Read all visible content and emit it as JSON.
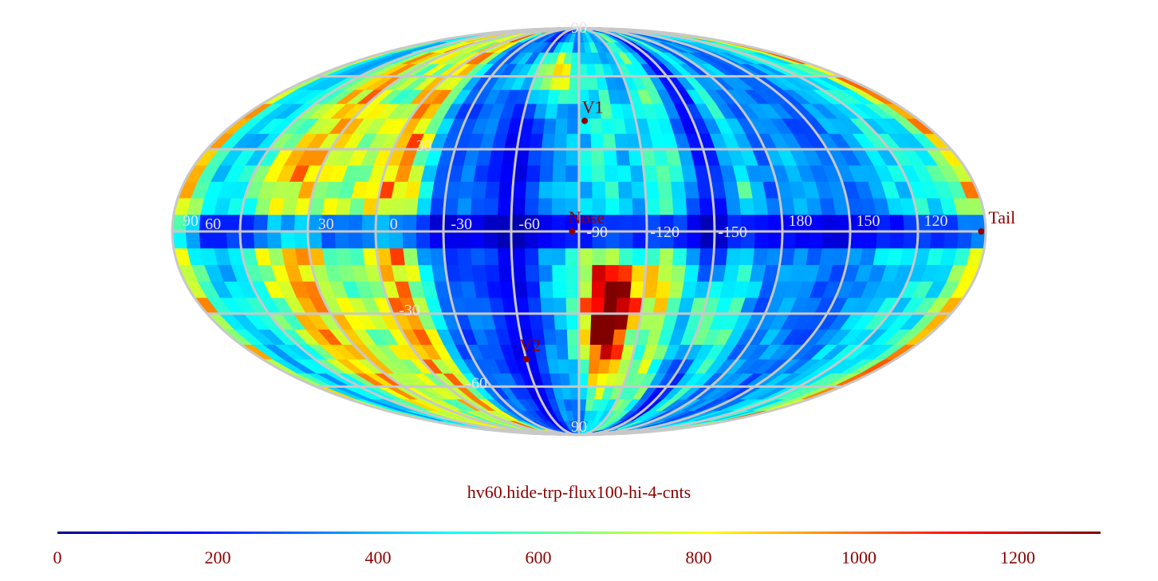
{
  "title": "hv60.hide-trp-flux100-hi-4-cnts",
  "projection": "mollweide",
  "colormap": "jet",
  "colors": {
    "grid": "#c8c8c8",
    "grid_label": "#e6e6e6",
    "marker": "#8b0000",
    "text": "#8b0000"
  },
  "colorbar": {
    "min": 0,
    "max": 1300,
    "ticks": [
      "0",
      "200",
      "400",
      "600",
      "800",
      "1000",
      "1200"
    ]
  },
  "graticule": {
    "longitude_labels": [
      "60",
      "30",
      "0",
      "-30",
      "-60",
      "-90",
      "-120",
      "-150",
      "180",
      "150",
      "120",
      "90"
    ],
    "latitude_labels": [
      "90",
      "30",
      "-30",
      "-60",
      "90"
    ]
  },
  "markers": [
    {
      "name": "V1",
      "label": "V1"
    },
    {
      "name": "Nose",
      "label": "Nose"
    },
    {
      "name": "V2",
      "label": "V2"
    },
    {
      "name": "Tail",
      "label": "Tail"
    }
  ]
}
